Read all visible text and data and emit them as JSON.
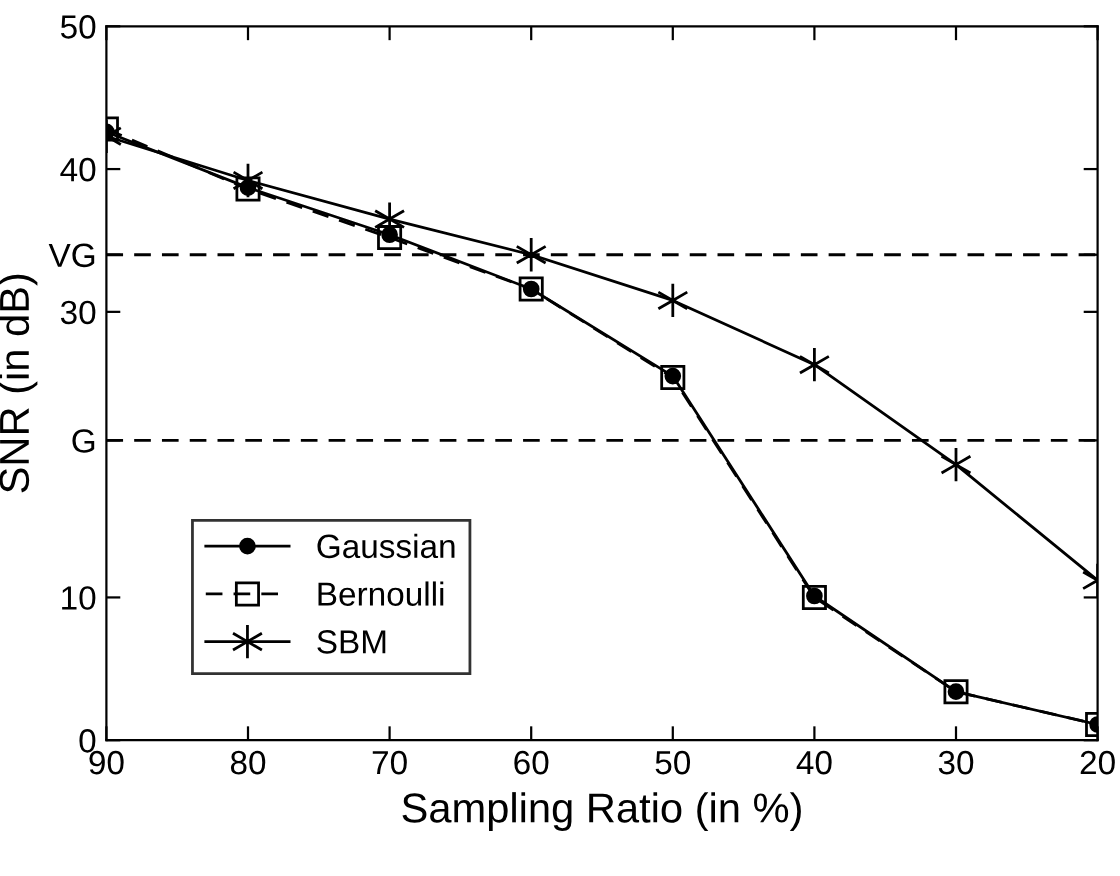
{
  "chart_data": {
    "type": "line",
    "xlabel": "Sampling Ratio (in %)",
    "ylabel": "SNR (in dB)",
    "x": [
      90,
      80,
      70,
      60,
      50,
      40,
      30,
      20
    ],
    "series": [
      {
        "name": "Gaussian",
        "color": "#000000",
        "marker": "circle",
        "line_style": "solid",
        "values": [
          42.6,
          38.7,
          35.4,
          31.6,
          25.5,
          10.1,
          3.4,
          1.1
        ]
      },
      {
        "name": "Bernoulli",
        "color": "#000000",
        "marker": "square",
        "line_style": "dashed",
        "values": [
          42.8,
          38.6,
          35.2,
          31.6,
          25.4,
          10.0,
          3.4,
          1.1
        ]
      },
      {
        "name": "SBM",
        "color": "#000000",
        "marker": "cross",
        "line_style": "solid",
        "values": [
          42.3,
          39.2,
          36.5,
          34.0,
          30.8,
          26.3,
          19.3,
          11.2
        ]
      }
    ],
    "xlim": [
      90,
      20
    ],
    "xticks": [
      90,
      80,
      70,
      60,
      50,
      40,
      30,
      20
    ],
    "ylim": [
      0,
      50
    ],
    "yticks": [
      0,
      10,
      {
        "value": 21,
        "label": "G"
      },
      30,
      {
        "value": 34,
        "label": "VG"
      },
      40,
      50
    ],
    "ref_lines": [
      {
        "axis": "y",
        "value": 34,
        "color": "#000000",
        "line_style": "dashed"
      },
      {
        "axis": "y",
        "value": 21,
        "color": "#000000",
        "line_style": "dashed"
      }
    ],
    "legend": "lower left",
    "grid": false
  }
}
